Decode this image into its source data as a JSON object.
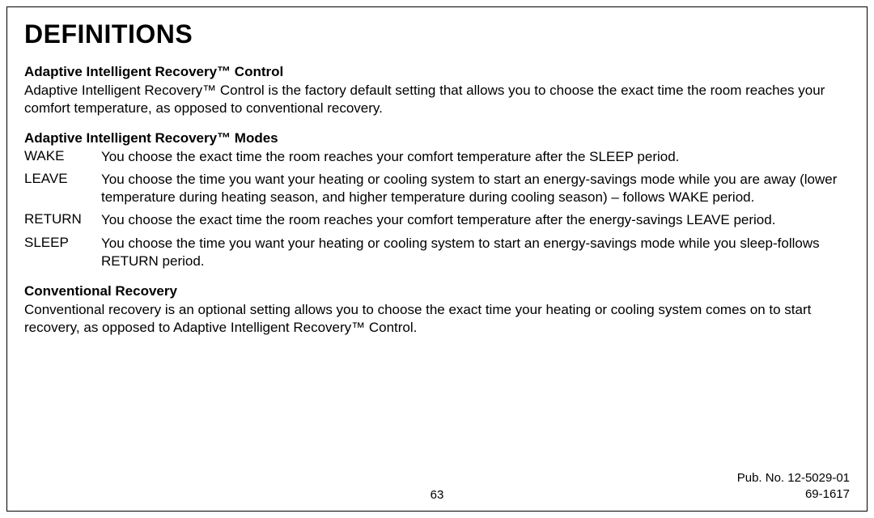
{
  "heading": "DEFINITIONS",
  "section1": {
    "title": "Adaptive Intelligent Recovery™ Control",
    "body": "Adaptive Intelligent Recovery™ Control is the factory default setting that allows you to choose the exact time the room reaches your comfort temperature, as opposed to conventional recovery."
  },
  "section2": {
    "title": "Adaptive Intelligent Recovery™ Modes",
    "modes": [
      {
        "label": "WAKE",
        "desc": "You choose the exact time the room reaches your comfort temperature after the SLEEP period."
      },
      {
        "label": "LEAVE",
        "desc": "You choose the time you want your heating or cooling system to start an energy-savings mode while you are away (lower temperature during heating season, and higher temperature during cooling season) – follows WAKE period."
      },
      {
        "label": "RETURN",
        "desc": "You choose the exact time the room reaches your comfort temperature after the energy-savings LEAVE period."
      },
      {
        "label": "SLEEP",
        "desc": "You choose the time you want your heating or cooling system to start an energy-savings mode while you sleep-follows RETURN period."
      }
    ]
  },
  "section3": {
    "title": "Conventional Recovery",
    "body": "Conventional recovery is an optional setting allows you to choose the exact time your heating or cooling system comes on to start recovery, as opposed to Adaptive Intelligent Recovery™ Control."
  },
  "footer": {
    "page": "63",
    "pub1": "Pub. No. 12-5029-01",
    "pub2": "69-1617"
  }
}
